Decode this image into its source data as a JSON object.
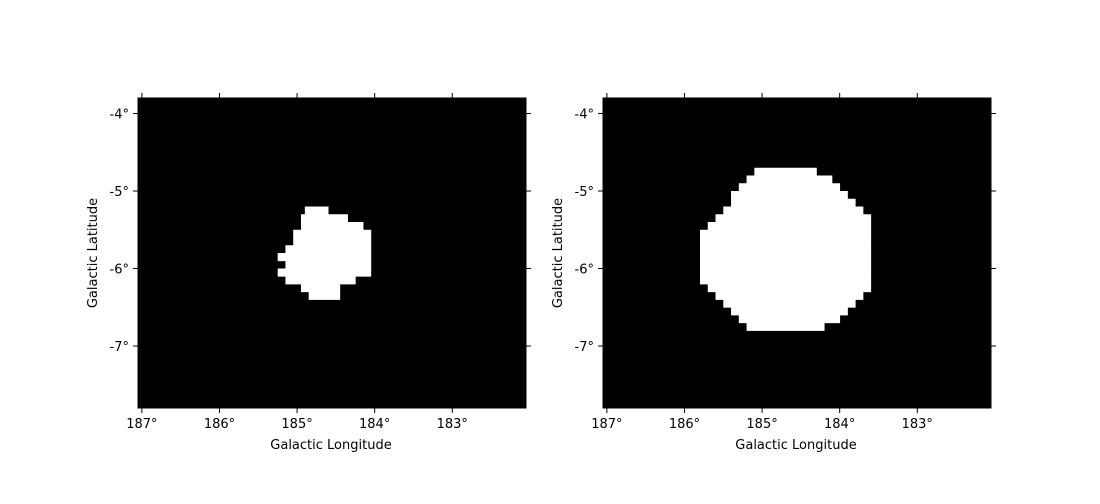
{
  "colors": {
    "background": "#000000",
    "mask": "#ffffff",
    "frame": "#000000"
  },
  "chart_data": [
    {
      "type": "heatmap",
      "title": "",
      "xlabel": "Galactic Longitude",
      "ylabel": "Galactic Latitude",
      "xlim": [
        187.05,
        182.05
      ],
      "ylim": [
        -7.8,
        -3.8
      ],
      "xticks": [
        187,
        186,
        185,
        184,
        183
      ],
      "xtick_labels": [
        "187°",
        "186°",
        "185°",
        "184°",
        "183°"
      ],
      "yticks": [
        -4,
        -5,
        -6,
        -7
      ],
      "ytick_labels": [
        "-4°",
        "-5°",
        "-6°",
        "-7°"
      ],
      "grid": false,
      "colormap": "gray",
      "values_meaning": "white = 1 (inside mask region), black = 0",
      "mask_pixels": {
        "pixel_size_deg": 0.1,
        "row_top_latitude": -5.2,
        "rows": [
          {
            "lon_start": 184.9,
            "lon_end": 184.6
          },
          {
            "lon_start": 184.95,
            "lon_end": 184.35
          },
          {
            "lon_start": 184.95,
            "lon_end": 184.15
          },
          {
            "lon_start": 185.05,
            "lon_end": 184.05
          },
          {
            "lon_start": 185.05,
            "lon_end": 184.05
          },
          {
            "lon_start": 185.15,
            "lon_end": 184.05
          },
          {
            "lon_start": 185.25,
            "lon_end": 184.05
          },
          {
            "lon_start": 185.15,
            "lon_end": 184.05
          },
          {
            "lon_start": 185.25,
            "lon_end": 184.05
          },
          {
            "lon_start": 185.15,
            "lon_end": 184.25
          },
          {
            "lon_start": 184.95,
            "lon_end": 184.45
          },
          {
            "lon_start": 184.85,
            "lon_end": 184.45
          }
        ]
      }
    },
    {
      "type": "heatmap",
      "title": "",
      "xlabel": "Galactic Longitude",
      "ylabel": "Galactic Latitude",
      "xlim": [
        187.05,
        182.05
      ],
      "ylim": [
        -7.8,
        -3.8
      ],
      "xticks": [
        187,
        186,
        185,
        184,
        183
      ],
      "xtick_labels": [
        "187°",
        "186°",
        "185°",
        "184°",
        "183°"
      ],
      "yticks": [
        -4,
        -5,
        -6,
        -7
      ],
      "ytick_labels": [
        "-4°",
        "-5°",
        "-6°",
        "-7°"
      ],
      "grid": false,
      "colormap": "gray",
      "values_meaning": "white = 1 (inside mask region), black = 0",
      "mask_pixels": {
        "pixel_size_deg": 0.1,
        "row_top_latitude": -4.7,
        "rows": [
          {
            "lon_start": 185.1,
            "lon_end": 184.3
          },
          {
            "lon_start": 185.2,
            "lon_end": 184.1
          },
          {
            "lon_start": 185.3,
            "lon_end": 184.0
          },
          {
            "lon_start": 185.4,
            "lon_end": 183.9
          },
          {
            "lon_start": 185.4,
            "lon_end": 183.8
          },
          {
            "lon_start": 185.5,
            "lon_end": 183.7
          },
          {
            "lon_start": 185.6,
            "lon_end": 183.6
          },
          {
            "lon_start": 185.7,
            "lon_end": 183.6
          },
          {
            "lon_start": 185.8,
            "lon_end": 183.6
          },
          {
            "lon_start": 185.8,
            "lon_end": 183.6
          },
          {
            "lon_start": 185.8,
            "lon_end": 183.6
          },
          {
            "lon_start": 185.8,
            "lon_end": 183.6
          },
          {
            "lon_start": 185.8,
            "lon_end": 183.6
          },
          {
            "lon_start": 185.8,
            "lon_end": 183.6
          },
          {
            "lon_start": 185.8,
            "lon_end": 183.6
          },
          {
            "lon_start": 185.7,
            "lon_end": 183.6
          },
          {
            "lon_start": 185.6,
            "lon_end": 183.7
          },
          {
            "lon_start": 185.5,
            "lon_end": 183.8
          },
          {
            "lon_start": 185.4,
            "lon_end": 183.9
          },
          {
            "lon_start": 185.3,
            "lon_end": 184.0
          },
          {
            "lon_start": 185.2,
            "lon_end": 184.2
          }
        ]
      }
    }
  ]
}
